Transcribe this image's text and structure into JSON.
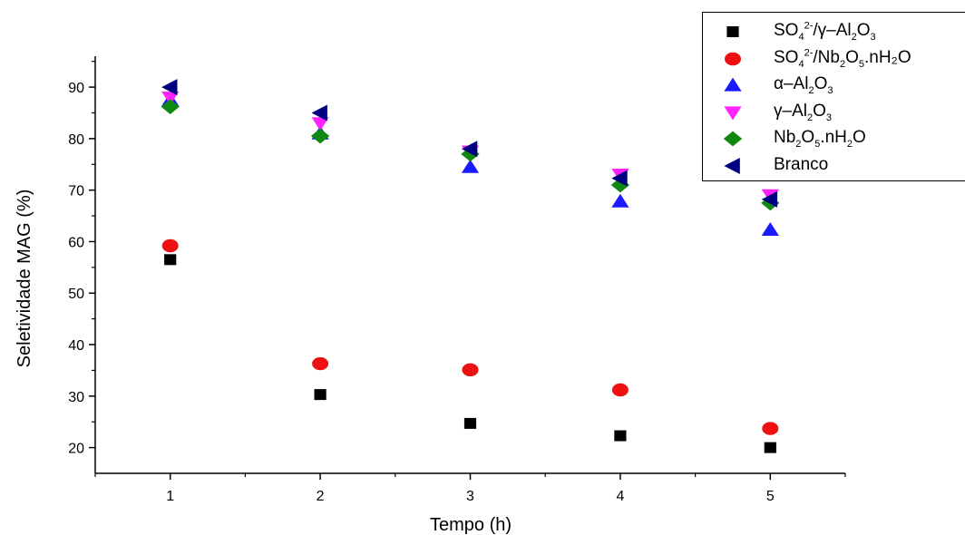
{
  "chart_data": {
    "type": "scatter",
    "xlabel": "Tempo (h)",
    "ylabel": "Seletividade MAG (%)",
    "xlim": [
      0.5,
      5.5
    ],
    "ylim": [
      15,
      96
    ],
    "xticks": [
      1,
      2,
      3,
      4,
      5
    ],
    "yticks": [
      20,
      30,
      40,
      50,
      60,
      70,
      80,
      90
    ],
    "grid": false,
    "legend_position": "top-right",
    "x": [
      1,
      2,
      3,
      4,
      5
    ],
    "series": [
      {
        "name": "SO4 2-/γ-Al2O3",
        "marker": "square",
        "color": "#000000",
        "values": [
          56.5,
          30.3,
          24.7,
          22.3,
          20.0
        ]
      },
      {
        "name": "SO4 2-/Nb2O5.nH2O",
        "marker": "circle",
        "color": "#ee1111",
        "values": [
          59.2,
          36.3,
          35.1,
          31.2,
          23.7
        ]
      },
      {
        "name": "α-Al2O3",
        "marker": "triangle-up",
        "color": "#1a1aff",
        "values": [
          87.5,
          81.0,
          74.5,
          67.8,
          62.3
        ]
      },
      {
        "name": "γ-Al2O3",
        "marker": "triangle-down",
        "color": "#ff22ff",
        "values": [
          88.0,
          83.0,
          77.5,
          73.0,
          69.0
        ]
      },
      {
        "name": "Nb2O5.nH2O",
        "marker": "diamond",
        "color": "#118811",
        "values": [
          86.2,
          80.5,
          77.0,
          71.0,
          67.5
        ]
      },
      {
        "name": "Branco",
        "marker": "triangle-left",
        "color": "#000080",
        "values": [
          90.0,
          85.0,
          78.0,
          72.3,
          68.2
        ]
      }
    ]
  },
  "legend": {
    "entries": [
      {
        "base": "SO",
        "sub1": "4",
        "sup1": "2-",
        "mid": "/γ–Al",
        "sub2": "2",
        "mid2": "O",
        "sub3": "3",
        "tail": ""
      },
      {
        "base": "SO",
        "sub1": "4",
        "sup1": "2-",
        "mid": "/Nb",
        "sub2": "2",
        "mid2": "O",
        "sub3": "5",
        "tail": ".nH₂O"
      },
      {
        "base": "α–Al",
        "sub1": "2",
        "sup1": "",
        "mid": "O",
        "sub2": "3",
        "mid2": "",
        "sub3": "",
        "tail": ""
      },
      {
        "base": "γ–Al",
        "sub1": "2",
        "sup1": "",
        "mid": "O",
        "sub2": "3",
        "mid2": "",
        "sub3": "",
        "tail": ""
      },
      {
        "base": "Nb",
        "sub1": "2",
        "sup1": "",
        "mid": "O",
        "sub2": "5",
        "mid2": ".nH",
        "sub3": "2",
        "tail": "O"
      },
      {
        "base": "Branco",
        "sub1": "",
        "sup1": "",
        "mid": "",
        "sub2": "",
        "mid2": "",
        "sub3": "",
        "tail": ""
      }
    ]
  }
}
